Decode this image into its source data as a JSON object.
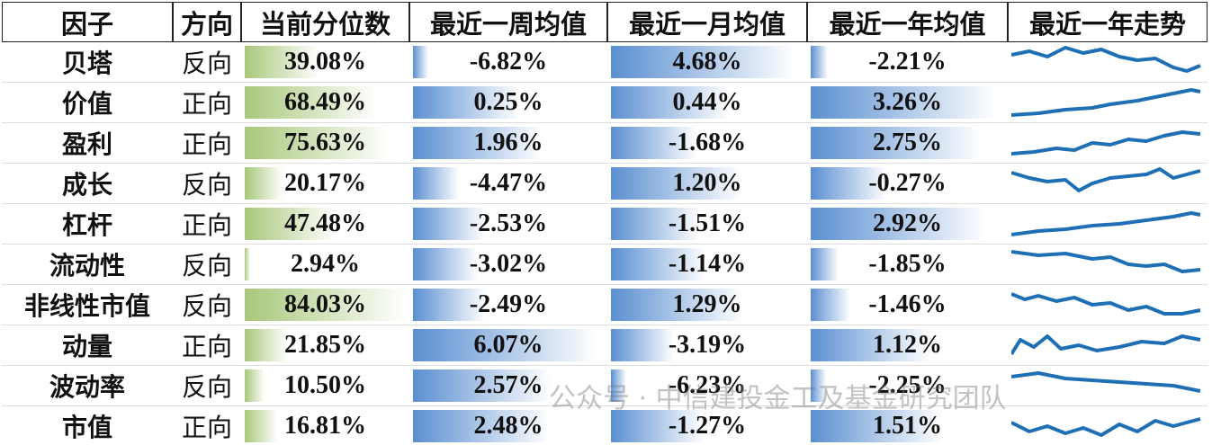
{
  "table": {
    "header": [
      "因子",
      "方向",
      "当前分位数",
      "最近一周均值",
      "最近一月均值",
      "最近一年均值",
      "最近一年走势"
    ],
    "rows": [
      [
        "贝塔",
        "反向",
        "39.08%",
        "-6.82%",
        "4.68%",
        "-2.21%"
      ],
      [
        "价值",
        "正向",
        "68.49%",
        "0.25%",
        "0.44%",
        "3.26%"
      ],
      [
        "盈利",
        "正向",
        "75.63%",
        "1.96%",
        "-1.68%",
        "2.75%"
      ],
      [
        "成长",
        "反向",
        "20.17%",
        "-4.47%",
        "1.20%",
        "-0.27%"
      ],
      [
        "杠杆",
        "正向",
        "47.48%",
        "-2.53%",
        "-1.51%",
        "2.92%"
      ],
      [
        "流动性",
        "反向",
        "2.94%",
        "-3.02%",
        "-1.14%",
        "-1.85%"
      ],
      [
        "非线性市值",
        "反向",
        "84.03%",
        "-2.49%",
        "1.29%",
        "-1.46%"
      ],
      [
        "动量",
        "正向",
        "21.85%",
        "6.07%",
        "-3.19%",
        "1.12%"
      ],
      [
        "波动率",
        "反向",
        "10.50%",
        "2.57%",
        "-6.23%",
        "-2.25%"
      ],
      [
        "市值",
        "正向",
        "16.81%",
        "2.48%",
        "-1.27%",
        "1.51%"
      ]
    ],
    "watermark": "公众号 · 中信建投金工及基金研究团队"
  }
}
